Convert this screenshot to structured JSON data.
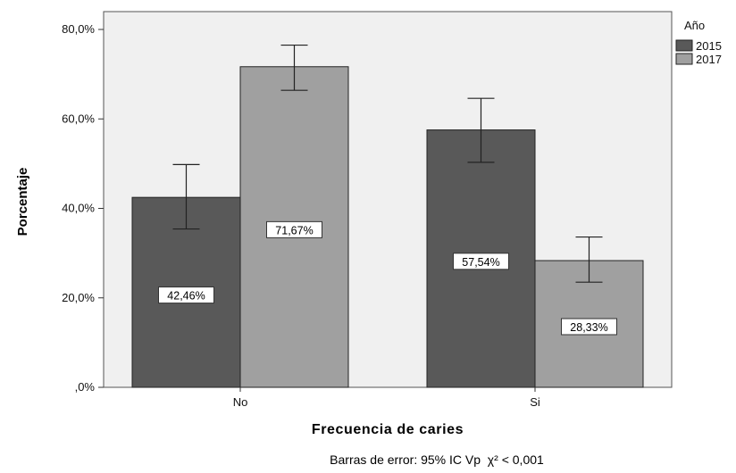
{
  "chart_data": {
    "type": "bar",
    "categories": [
      "No",
      "Si"
    ],
    "series": [
      {
        "name": "2015",
        "values": [
          42.46,
          57.54
        ],
        "error_low": [
          35.4,
          50.3
        ],
        "error_high": [
          49.8,
          64.6
        ],
        "color": "#595959"
      },
      {
        "name": "2017",
        "values": [
          71.67,
          28.33
        ],
        "error_low": [
          66.4,
          23.5
        ],
        "error_high": [
          76.5,
          33.6
        ],
        "color": "#a0a0a0"
      }
    ],
    "data_labels": [
      [
        "42,46%",
        "57,54%"
      ],
      [
        "71,67%",
        "28,33%"
      ]
    ],
    "yticks": [
      0,
      20,
      40,
      60,
      80
    ],
    "ytick_labels": [
      ",0%",
      "20,0%",
      "40,0%",
      "60,0%",
      "80,0%"
    ],
    "ylim": [
      0,
      80
    ],
    "xlabel": "Frecuencia de caries",
    "ylabel": "Porcentaje",
    "legend_title": "Año",
    "legend_position": "top-right",
    "caption": "Barras de error: 95% IC Vp  χ² < 0,001",
    "background": "#f0f0f0",
    "grid": false
  }
}
